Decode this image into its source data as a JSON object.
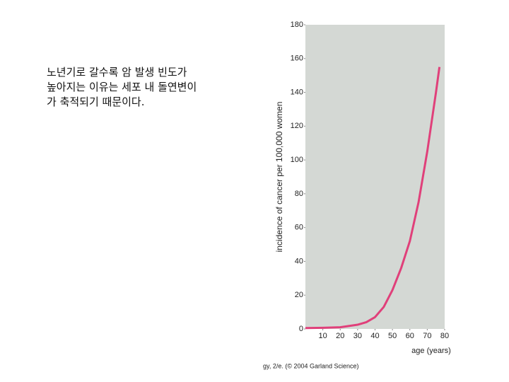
{
  "slide_text": [
    "노년기로 갈수록 암 발생 빈도가",
    "높아지는 이유는 세포 내 돌연변이",
    "가 축적되기 때문이다."
  ],
  "credit": "gy, 2/e. (© 2004 Garland Science)",
  "chart_data": {
    "type": "line",
    "ylabel": "incidence of cancer per 100,000 women",
    "xlabel": "age (years)",
    "x": [
      0,
      10,
      20,
      30,
      35,
      40,
      45,
      50,
      55,
      60,
      65,
      70,
      75,
      77
    ],
    "series": [
      {
        "name": "incidence",
        "color": "#e0407a",
        "values": [
          0.5,
          0.7,
          1,
          2.5,
          4,
          7,
          13,
          23,
          36,
          52,
          75,
          105,
          140,
          155
        ]
      }
    ],
    "xlim": [
      0,
      80
    ],
    "xticks": [
      10,
      20,
      30,
      40,
      50,
      60,
      70,
      80
    ],
    "ylim": [
      0,
      180
    ],
    "yticks": [
      0,
      20,
      40,
      60,
      80,
      100,
      120,
      140,
      160,
      180
    ],
    "background": "#d4d8d4"
  }
}
